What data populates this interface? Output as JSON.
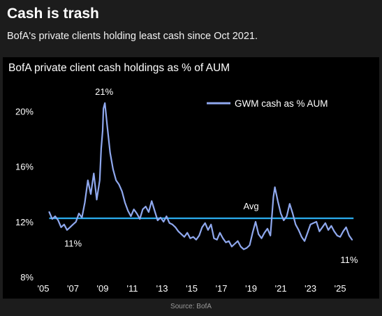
{
  "headline": "Cash is trash",
  "subheadline": "BofA's private clients holding least cash since Oct 2021.",
  "source": "Source: BofA",
  "chart_data": {
    "type": "line",
    "title": "BofA private client cash holdings as % of AUM",
    "xlabel": "",
    "ylabel": "",
    "xlim": [
      2005.0,
      2026.5
    ],
    "ylim": [
      8,
      21.8
    ],
    "x_ticks": [
      "'05",
      "'07",
      "'09",
      "'11",
      "'13",
      "'15",
      "'17",
      "'19",
      "'21",
      "'23",
      "'25"
    ],
    "x_tick_values": [
      2005,
      2007,
      2009,
      2011,
      2013,
      2015,
      2017,
      2019,
      2021,
      2023,
      2025
    ],
    "y_ticks": [
      "8%",
      "12%",
      "16%",
      "20%"
    ],
    "y_tick_values": [
      8,
      12,
      16,
      20
    ],
    "grid": false,
    "legend": "top-right",
    "colors": {
      "series": "#8fa8ee",
      "average": "#2aa8e8",
      "background": "#000000",
      "text": "#ffffff"
    },
    "series": [
      {
        "name": "GWM cash as % AUM",
        "x": [
          2005.4,
          2005.6,
          2005.8,
          2006.0,
          2006.2,
          2006.4,
          2006.6,
          2006.8,
          2007.0,
          2007.2,
          2007.4,
          2007.6,
          2007.8,
          2008.0,
          2008.2,
          2008.4,
          2008.6,
          2008.8,
          2008.9,
          2009.0,
          2009.05,
          2009.15,
          2009.3,
          2009.5,
          2009.7,
          2009.9,
          2010.1,
          2010.3,
          2010.5,
          2010.7,
          2010.9,
          2011.1,
          2011.3,
          2011.5,
          2011.7,
          2011.9,
          2012.1,
          2012.3,
          2012.5,
          2012.7,
          2012.9,
          2013.1,
          2013.3,
          2013.5,
          2013.7,
          2013.9,
          2014.1,
          2014.3,
          2014.5,
          2014.7,
          2014.9,
          2015.1,
          2015.3,
          2015.5,
          2015.7,
          2015.9,
          2016.1,
          2016.3,
          2016.5,
          2016.7,
          2016.9,
          2017.1,
          2017.3,
          2017.5,
          2017.7,
          2017.9,
          2018.1,
          2018.3,
          2018.5,
          2018.7,
          2018.9,
          2019.1,
          2019.3,
          2019.5,
          2019.7,
          2019.9,
          2020.1,
          2020.3,
          2020.5,
          2020.6,
          2020.8,
          2021.0,
          2021.2,
          2021.4,
          2021.6,
          2021.8,
          2022.0,
          2022.2,
          2022.4,
          2022.6,
          2022.8,
          2023.0,
          2023.2,
          2023.4,
          2023.6,
          2023.8,
          2024.0,
          2024.2,
          2024.4,
          2024.6,
          2024.8,
          2025.0,
          2025.2,
          2025.4,
          2025.6,
          2025.8
        ],
        "values": [
          12.7,
          12.2,
          12.4,
          12.1,
          11.6,
          11.8,
          11.4,
          11.6,
          11.8,
          12.0,
          12.6,
          12.3,
          13.4,
          15.0,
          14.0,
          15.5,
          13.6,
          15.0,
          17.3,
          18.6,
          20.2,
          20.6,
          19.0,
          17.0,
          15.8,
          15.0,
          14.7,
          14.2,
          13.4,
          12.8,
          12.4,
          12.9,
          12.6,
          12.2,
          12.9,
          13.1,
          12.7,
          13.5,
          12.8,
          12.1,
          12.3,
          12.0,
          12.4,
          11.9,
          11.8,
          11.6,
          11.3,
          11.1,
          10.9,
          11.2,
          10.8,
          10.9,
          10.7,
          11.0,
          11.6,
          11.9,
          11.4,
          11.8,
          10.8,
          10.7,
          11.2,
          10.8,
          10.5,
          10.6,
          10.2,
          10.4,
          10.6,
          10.2,
          10.0,
          10.1,
          10.3,
          11.2,
          12.0,
          11.1,
          10.8,
          11.2,
          11.5,
          11.0,
          13.8,
          14.5,
          13.5,
          12.6,
          12.1,
          12.4,
          13.3,
          12.6,
          11.8,
          11.4,
          10.9,
          10.6,
          11.2,
          11.8,
          11.9,
          12.0,
          11.3,
          11.6,
          11.9,
          11.4,
          11.7,
          11.3,
          11.0,
          10.9,
          11.3,
          11.6,
          11.0,
          10.7
        ]
      }
    ],
    "average": {
      "label": "Avg",
      "value": 12.25,
      "x_start": 2005.4,
      "x_end": 2025.9
    },
    "annotations": [
      {
        "text": "21%",
        "x": 2009.1,
        "y": 21.2
      },
      {
        "text": "11%",
        "x": 2007.0,
        "y": 10.2
      },
      {
        "text": "11%",
        "x": 2025.6,
        "y": 9.0
      },
      {
        "text": "Avg",
        "x": 2019.0,
        "y": 12.9
      }
    ]
  }
}
